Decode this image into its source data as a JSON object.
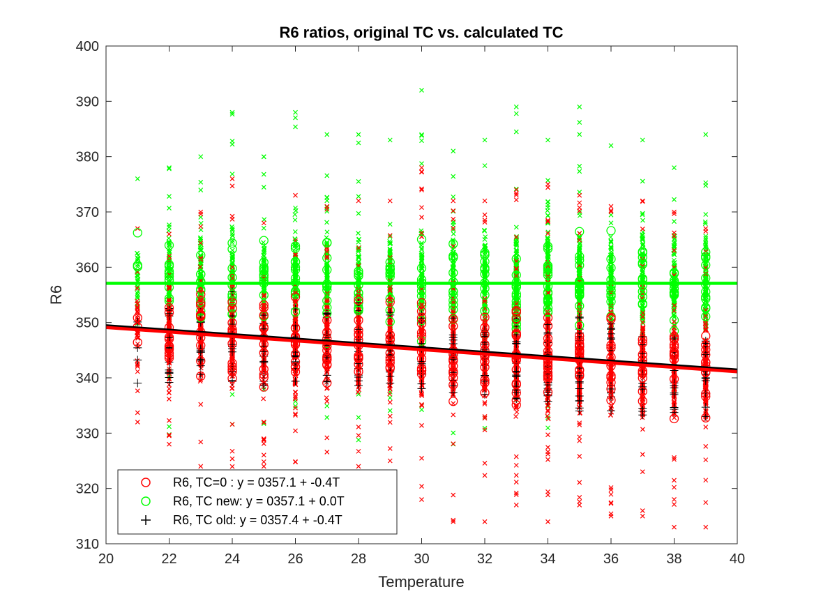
{
  "chart_data": {
    "type": "scatter",
    "title": "R6 ratios, original TC vs. calculated TC",
    "xlabel": "Temperature",
    "ylabel": "R6",
    "xlim": [
      20,
      40
    ],
    "ylim": [
      310,
      400
    ],
    "xticks": [
      20,
      22,
      24,
      26,
      28,
      30,
      32,
      34,
      36,
      38,
      40
    ],
    "yticks": [
      310,
      320,
      330,
      340,
      350,
      360,
      370,
      380,
      390,
      400
    ],
    "grid": false,
    "legend_position": "bottom-left",
    "legend": [
      {
        "label": "R6, TC=0  :  y = 0357.1 + -0.4T",
        "marker": "circle",
        "color": "#ff0000"
      },
      {
        "label": "R6, TC new: y = 0357.1 + 0.0T",
        "marker": "circle",
        "color": "#00ff00"
      },
      {
        "label": "R6, TC old: y = 0357.4 + -0.4T",
        "marker": "plus",
        "color": "#000000"
      }
    ],
    "temperatures": [
      21,
      22,
      23,
      24,
      25,
      26,
      27,
      28,
      29,
      30,
      31,
      32,
      33,
      34,
      35,
      36,
      37,
      38,
      39
    ],
    "series": [
      {
        "name": "R6, TC=0",
        "color": "#ff0000",
        "marker": "circle",
        "fit": {
          "intercept": 357.1,
          "slope": -0.4
        },
        "range_min": [
          332,
          328,
          324,
          323,
          324,
          323,
          323,
          324,
          325,
          318,
          314,
          314,
          317,
          314,
          317,
          315,
          315,
          313,
          313
        ],
        "range_max": [
          367,
          366,
          370,
          376,
          368,
          373,
          371,
          372,
          372,
          378,
          372,
          372,
          374,
          375,
          373,
          371,
          372,
          370,
          367
        ]
      },
      {
        "name": "R6, TC new",
        "color": "#00ff00",
        "marker": "circle",
        "fit": {
          "intercept": 357.1,
          "slope": 0.0
        },
        "range_min": [
          340,
          329,
          330,
          330,
          330,
          328,
          330,
          328,
          330,
          330,
          328,
          330,
          333,
          330,
          334,
          335,
          334,
          335,
          335
        ],
        "range_max": [
          376,
          378,
          380,
          388,
          380,
          388,
          384,
          384,
          383,
          392,
          381,
          383,
          389,
          383,
          389,
          382,
          383,
          378,
          384
        ]
      },
      {
        "name": "R6, TC old",
        "color": "#000000",
        "marker": "plus",
        "fit": {
          "intercept": 357.4,
          "slope": -0.4
        },
        "range_min": [
          339,
          339,
          338,
          338,
          338,
          338,
          337,
          337,
          337,
          337,
          336,
          336,
          335,
          334,
          334,
          334,
          333,
          333,
          332
        ],
        "range_max": [
          352,
          353,
          352,
          356,
          352,
          354,
          352,
          354,
          352,
          352,
          351,
          350,
          352,
          350,
          351,
          350,
          349,
          349,
          348
        ]
      }
    ]
  }
}
